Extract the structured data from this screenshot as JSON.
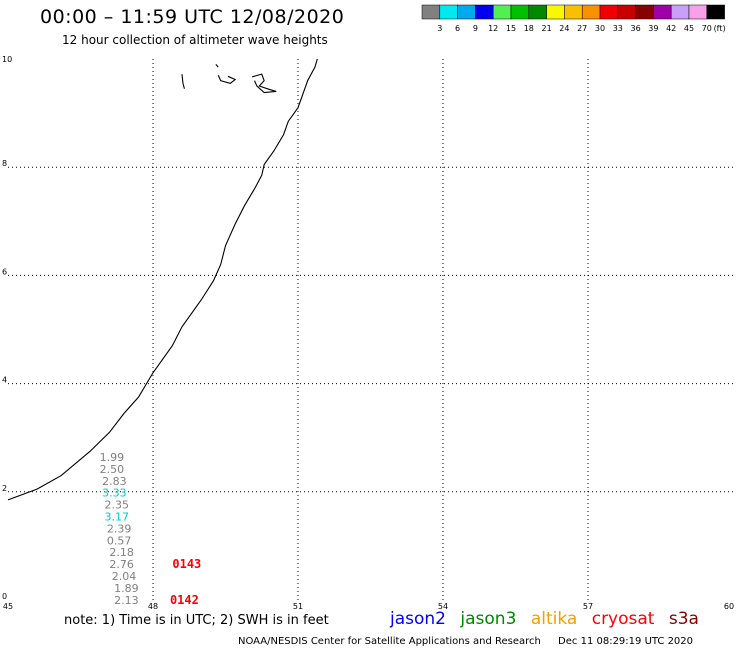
{
  "chart_data": {
    "type": "scatter",
    "title": "00:00 – 11:59 UTC 12/08/2020",
    "subtitle": "12 hour collection of altimeter wave heights",
    "xlim": [
      45,
      60
    ],
    "ylim": [
      0,
      10
    ],
    "x_ticks": [
      "45",
      "48",
      "51",
      "54",
      "57",
      "60"
    ],
    "y_ticks": [
      "0",
      "2",
      "4",
      "6",
      "8",
      "10"
    ],
    "grid": true,
    "colorbar": {
      "labels": [
        "3",
        "6",
        "9",
        "12",
        "15",
        "18",
        "21",
        "24",
        "27",
        "30",
        "33",
        "36",
        "39",
        "42",
        "45",
        "70"
      ],
      "unit": "(ft)",
      "colors": [
        "#808080",
        "#00e8f0",
        "#00a8f0",
        "#0000f0",
        "#50f050",
        "#00c000",
        "#008800",
        "#f8f800",
        "#f8c000",
        "#f89000",
        "#f00000",
        "#c80000",
        "#880000",
        "#a000a8",
        "#c8a0f8",
        "#f8a0e8",
        "#000000"
      ]
    },
    "wave_labels": [
      {
        "lon": 47.15,
        "lat": 2.57,
        "text": "1.99",
        "color": "#808080"
      },
      {
        "lon": 47.15,
        "lat": 2.35,
        "text": "2.50",
        "color": "#808080"
      },
      {
        "lon": 47.2,
        "lat": 2.13,
        "text": "2.83",
        "color": "#808080"
      },
      {
        "lon": 47.2,
        "lat": 1.91,
        "text": "3.33",
        "color": "#00c8d0"
      },
      {
        "lon": 47.25,
        "lat": 1.69,
        "text": "2.35",
        "color": "#808080"
      },
      {
        "lon": 47.25,
        "lat": 1.47,
        "text": "3.17",
        "color": "#00c8d0"
      },
      {
        "lon": 47.3,
        "lat": 1.25,
        "text": "2.39",
        "color": "#808080"
      },
      {
        "lon": 47.3,
        "lat": 1.03,
        "text": "0.57",
        "color": "#808080"
      },
      {
        "lon": 47.35,
        "lat": 0.81,
        "text": "2.18",
        "color": "#808080"
      },
      {
        "lon": 47.35,
        "lat": 0.59,
        "text": "2.76",
        "color": "#808080"
      },
      {
        "lon": 47.4,
        "lat": 0.37,
        "text": "2.04",
        "color": "#808080"
      },
      {
        "lon": 47.45,
        "lat": 0.15,
        "text": "1.89",
        "color": "#808080"
      },
      {
        "lon": 47.45,
        "lat": -0.07,
        "text": "2.13",
        "color": "#808080"
      }
    ],
    "time_labels": [
      {
        "lon": 48.7,
        "lat": 0.59,
        "text": "0143",
        "color": "#ff0000"
      },
      {
        "lon": 48.65,
        "lat": -0.07,
        "text": "0142",
        "color": "#ff0000"
      }
    ],
    "coastline": [
      [
        45.0,
        1.85
      ],
      [
        45.6,
        2.05
      ],
      [
        46.1,
        2.3
      ],
      [
        46.7,
        2.75
      ],
      [
        47.1,
        3.1
      ],
      [
        47.4,
        3.45
      ],
      [
        47.7,
        3.75
      ],
      [
        48.0,
        4.2
      ],
      [
        48.4,
        4.7
      ],
      [
        48.6,
        5.05
      ],
      [
        49.0,
        5.55
      ],
      [
        49.25,
        5.9
      ],
      [
        49.4,
        6.2
      ],
      [
        49.5,
        6.55
      ],
      [
        49.7,
        6.95
      ],
      [
        49.9,
        7.3
      ],
      [
        50.1,
        7.6
      ],
      [
        50.25,
        7.85
      ],
      [
        50.3,
        8.05
      ],
      [
        50.5,
        8.3
      ],
      [
        50.7,
        8.6
      ],
      [
        50.8,
        8.85
      ],
      [
        51.0,
        9.1
      ],
      [
        51.1,
        9.35
      ],
      [
        51.2,
        9.6
      ],
      [
        51.35,
        9.85
      ],
      [
        51.4,
        10.0
      ]
    ],
    "islands": [
      [
        [
          48.6,
          9.72
        ],
        [
          48.62,
          9.55
        ],
        [
          48.65,
          9.45
        ]
      ],
      [
        [
          49.35,
          9.7
        ],
        [
          49.4,
          9.6
        ],
        [
          49.6,
          9.55
        ],
        [
          49.7,
          9.62
        ],
        [
          49.55,
          9.68
        ]
      ],
      [
        [
          49.3,
          9.9
        ],
        [
          49.35,
          9.85
        ]
      ],
      [
        [
          50.05,
          9.67
        ],
        [
          50.25,
          9.72
        ],
        [
          50.3,
          9.6
        ],
        [
          50.2,
          9.5
        ],
        [
          50.4,
          9.44
        ],
        [
          50.55,
          9.4
        ],
        [
          50.3,
          9.38
        ],
        [
          50.15,
          9.5
        ],
        [
          50.1,
          9.6
        ]
      ]
    ]
  },
  "note": "note:  1) Time is in UTC;  2) SWH is in feet",
  "legend": {
    "jason2": {
      "text": "jason2",
      "color": "#0000ff"
    },
    "jason3": {
      "text": "jason3",
      "color": "#008800"
    },
    "altika": {
      "text": "altika",
      "color": "#f0a000"
    },
    "cryosat": {
      "text": "cryosat",
      "color": "#ff0000"
    },
    "s3a": {
      "text": "s3a",
      "color": "#880000"
    }
  },
  "footer": {
    "source": "NOAA/NESDIS Center for Satellite Applications and Research",
    "timestamp": "Dec 11 08:29:19 UTC 2020"
  }
}
